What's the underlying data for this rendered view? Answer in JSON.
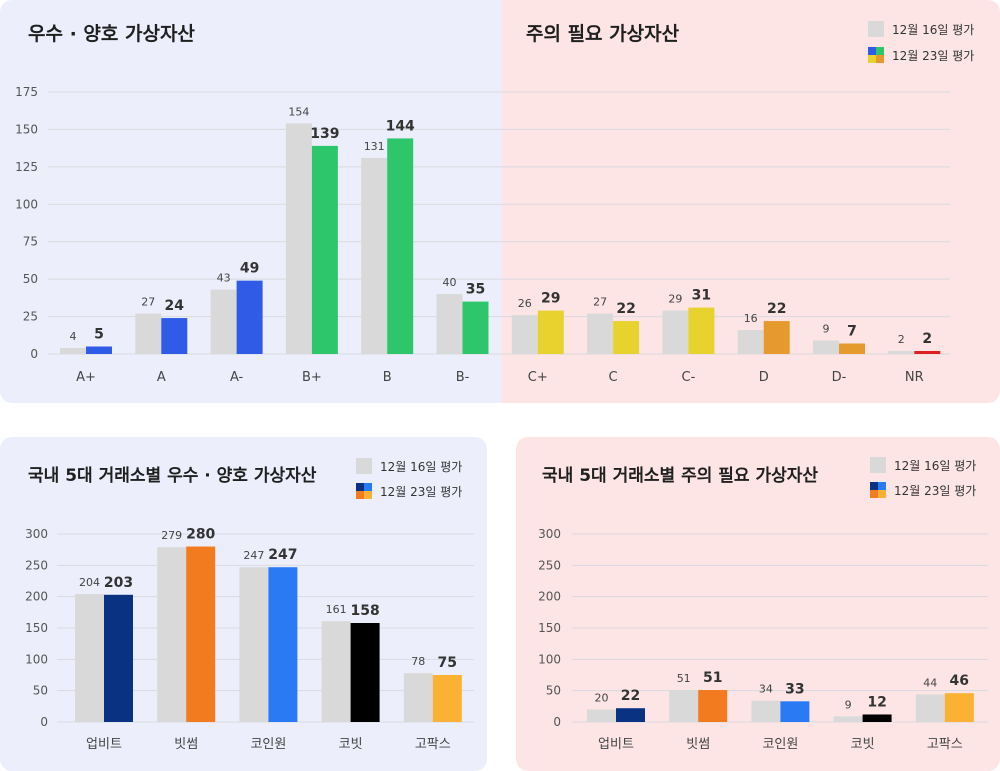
{
  "legend": {
    "old": "12월 16일 평가",
    "new": "12월 23일 평가"
  },
  "colors": {
    "old": "#d9d9d9",
    "blue": "#2f5be6",
    "green": "#2ec66a",
    "yellow": "#e8d22e",
    "orange": "#e69a2e",
    "red": "#e02020",
    "upbit": "#0a3282",
    "bithumb": "#f27a1f",
    "coinone": "#2a7af5",
    "korbit": "#000000",
    "gopax": "#fbb234"
  },
  "chart_data": [
    {
      "type": "bar",
      "titles": {
        "left": "우수 · 양호 가상자산",
        "right": "주의 필요 가상자산"
      },
      "categories": [
        "A+",
        "A",
        "A-",
        "B+",
        "B",
        "B-",
        "C+",
        "C",
        "C-",
        "D",
        "D-",
        "NR"
      ],
      "series": [
        {
          "name": "12월 16일 평가",
          "values": [
            4,
            27,
            43,
            154,
            131,
            40,
            26,
            27,
            29,
            16,
            9,
            2
          ]
        },
        {
          "name": "12월 23일 평가",
          "values": [
            5,
            24,
            49,
            139,
            144,
            35,
            29,
            22,
            31,
            22,
            7,
            2
          ]
        }
      ],
      "yticks": [
        0,
        25,
        50,
        75,
        100,
        125,
        150,
        175
      ],
      "ylim": [
        0,
        175
      ]
    },
    {
      "type": "bar",
      "title": "국내 5대 거래소별 우수 · 양호 가상자산",
      "categories": [
        "업비트",
        "빗썸",
        "코인원",
        "코빗",
        "고팍스"
      ],
      "series": [
        {
          "name": "12월 16일 평가",
          "values": [
            204,
            279,
            247,
            161,
            78
          ]
        },
        {
          "name": "12월 23일 평가",
          "values": [
            203,
            280,
            247,
            158,
            75
          ]
        }
      ],
      "yticks": [
        0,
        50,
        100,
        150,
        200,
        250,
        300
      ],
      "ylim": [
        0,
        300
      ]
    },
    {
      "type": "bar",
      "title": "국내 5대 거래소별 주의 필요 가상자산",
      "categories": [
        "업비트",
        "빗썸",
        "코인원",
        "코빗",
        "고팍스"
      ],
      "series": [
        {
          "name": "12월 16일 평가",
          "values": [
            20,
            51,
            34,
            9,
            44
          ]
        },
        {
          "name": "12월 23일 평가",
          "values": [
            22,
            51,
            33,
            12,
            46
          ]
        }
      ],
      "yticks": [
        0,
        50,
        100,
        150,
        200,
        250,
        300
      ],
      "ylim": [
        0,
        300
      ]
    }
  ]
}
